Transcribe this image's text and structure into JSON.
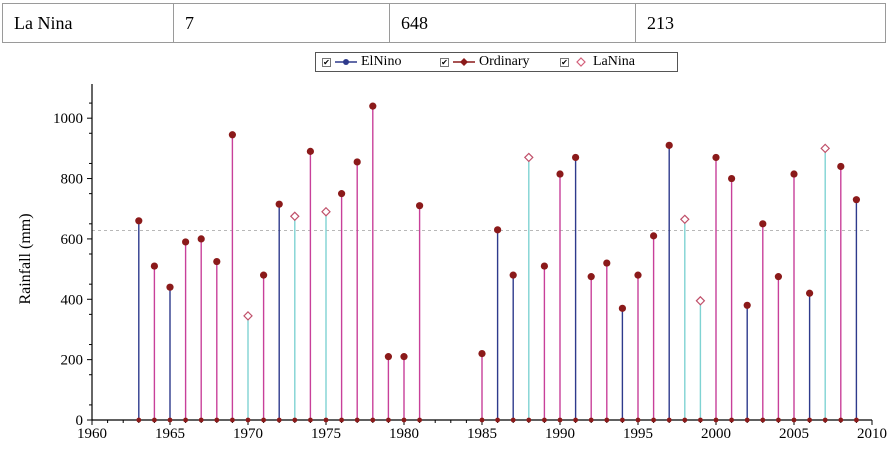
{
  "table": {
    "row": [
      "La Nina",
      "7",
      "648",
      "213"
    ]
  },
  "legend": {
    "items": [
      {
        "label": "ElNino",
        "color": "#2e3a8c",
        "marker": "filled-circle"
      },
      {
        "label": "Ordinary",
        "color": "#8b1a1a",
        "marker": "filled-diamond"
      },
      {
        "label": "LaNina",
        "color": "#d35f7a",
        "marker": "open-diamond"
      }
    ],
    "checkbox_mark": "✔"
  },
  "chart_data": {
    "type": "stem",
    "ylabel": "Rainfall (mm)",
    "xlim": [
      1960,
      2010
    ],
    "ylim": [
      0,
      1100
    ],
    "xticks": [
      1960,
      1965,
      1970,
      1975,
      1980,
      1985,
      1990,
      1995,
      2000,
      2005,
      2010
    ],
    "yticks": [
      0,
      200,
      400,
      600,
      800,
      1000
    ],
    "reference_line": 628,
    "colors": {
      "ElNino": "#2e3a8c",
      "Ordinary": "#c8409a",
      "LaNina": "#7fd3d3",
      "marker": "#8b1a1a"
    },
    "points": [
      {
        "year": 1963,
        "value": 660,
        "type": "ElNino"
      },
      {
        "year": 1964,
        "value": 510,
        "type": "Ordinary"
      },
      {
        "year": 1965,
        "value": 440,
        "type": "ElNino"
      },
      {
        "year": 1966,
        "value": 590,
        "type": "Ordinary"
      },
      {
        "year": 1967,
        "value": 600,
        "type": "Ordinary"
      },
      {
        "year": 1968,
        "value": 525,
        "type": "Ordinary"
      },
      {
        "year": 1969,
        "value": 945,
        "type": "Ordinary"
      },
      {
        "year": 1970,
        "value": 345,
        "type": "LaNina"
      },
      {
        "year": 1971,
        "value": 480,
        "type": "Ordinary"
      },
      {
        "year": 1972,
        "value": 715,
        "type": "ElNino"
      },
      {
        "year": 1973,
        "value": 675,
        "type": "LaNina"
      },
      {
        "year": 1974,
        "value": 890,
        "type": "Ordinary"
      },
      {
        "year": 1975,
        "value": 690,
        "type": "LaNina"
      },
      {
        "year": 1976,
        "value": 750,
        "type": "Ordinary"
      },
      {
        "year": 1977,
        "value": 855,
        "type": "Ordinary"
      },
      {
        "year": 1978,
        "value": 1040,
        "type": "Ordinary"
      },
      {
        "year": 1979,
        "value": 210,
        "type": "Ordinary"
      },
      {
        "year": 1980,
        "value": 210,
        "type": "Ordinary"
      },
      {
        "year": 1981,
        "value": 710,
        "type": "Ordinary"
      },
      {
        "year": 1985,
        "value": 220,
        "type": "Ordinary"
      },
      {
        "year": 1986,
        "value": 630,
        "type": "ElNino"
      },
      {
        "year": 1987,
        "value": 480,
        "type": "ElNino"
      },
      {
        "year": 1988,
        "value": 870,
        "type": "LaNina"
      },
      {
        "year": 1989,
        "value": 510,
        "type": "Ordinary"
      },
      {
        "year": 1990,
        "value": 815,
        "type": "Ordinary"
      },
      {
        "year": 1991,
        "value": 870,
        "type": "ElNino"
      },
      {
        "year": 1992,
        "value": 475,
        "type": "Ordinary"
      },
      {
        "year": 1993,
        "value": 520,
        "type": "Ordinary"
      },
      {
        "year": 1994,
        "value": 370,
        "type": "ElNino"
      },
      {
        "year": 1995,
        "value": 480,
        "type": "Ordinary"
      },
      {
        "year": 1996,
        "value": 610,
        "type": "Ordinary"
      },
      {
        "year": 1997,
        "value": 910,
        "type": "ElNino"
      },
      {
        "year": 1998,
        "value": 665,
        "type": "LaNina"
      },
      {
        "year": 1999,
        "value": 395,
        "type": "LaNina"
      },
      {
        "year": 2000,
        "value": 870,
        "type": "Ordinary"
      },
      {
        "year": 2001,
        "value": 800,
        "type": "Ordinary"
      },
      {
        "year": 2002,
        "value": 380,
        "type": "ElNino"
      },
      {
        "year": 2003,
        "value": 650,
        "type": "Ordinary"
      },
      {
        "year": 2004,
        "value": 475,
        "type": "Ordinary"
      },
      {
        "year": 2005,
        "value": 815,
        "type": "Ordinary"
      },
      {
        "year": 2006,
        "value": 420,
        "type": "ElNino"
      },
      {
        "year": 2007,
        "value": 900,
        "type": "LaNina"
      },
      {
        "year": 2008,
        "value": 840,
        "type": "Ordinary"
      },
      {
        "year": 2009,
        "value": 730,
        "type": "ElNino"
      }
    ]
  }
}
